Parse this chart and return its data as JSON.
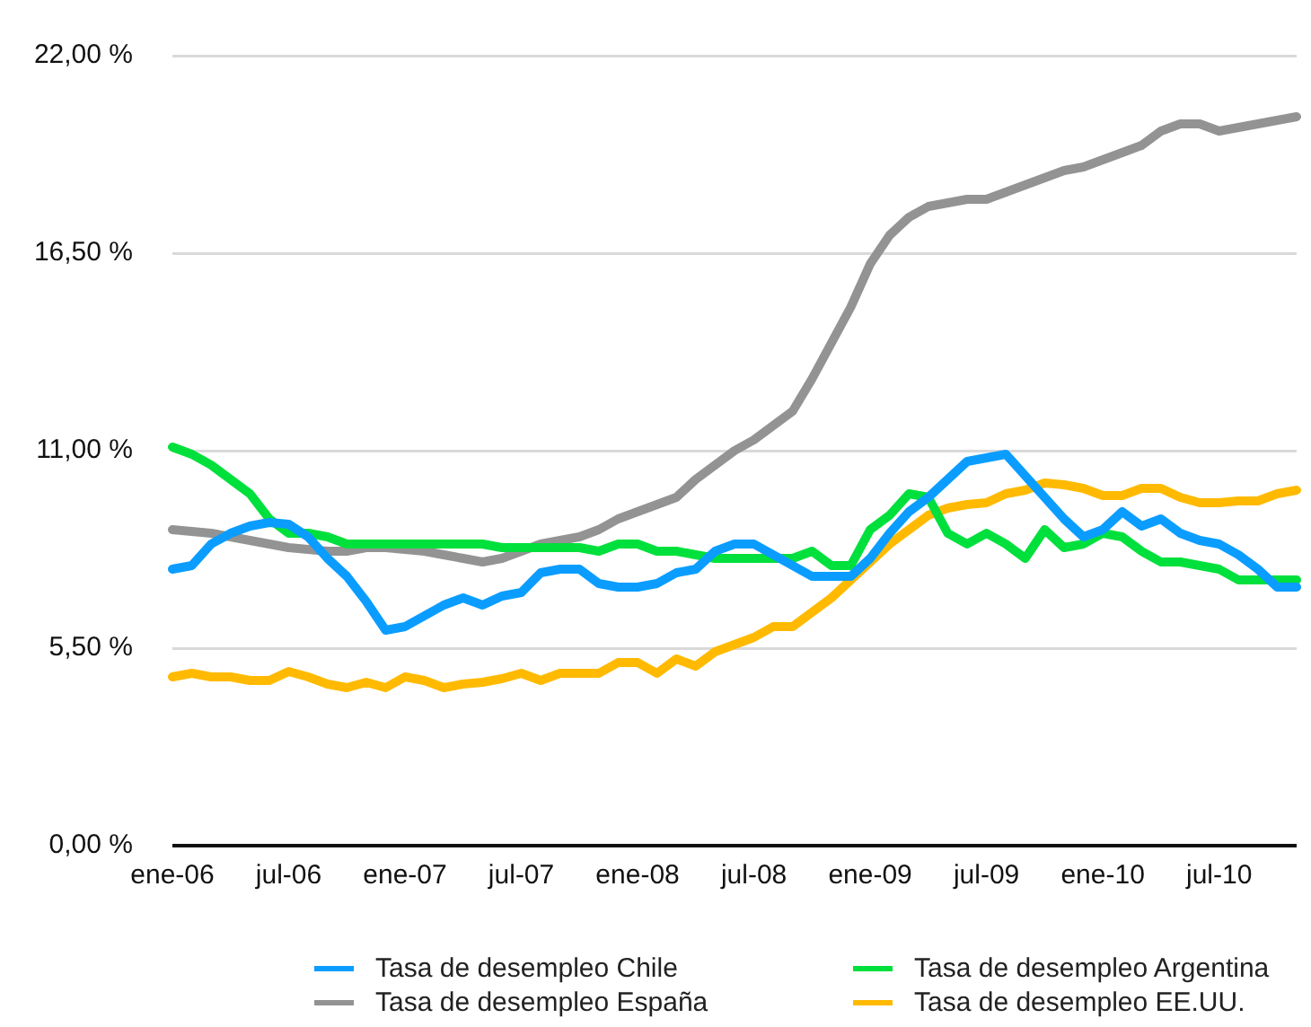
{
  "chart_data": {
    "type": "line",
    "categories": [
      "ene-06",
      null,
      null,
      null,
      null,
      null,
      "jul-06",
      null,
      null,
      null,
      null,
      null,
      "ene-07",
      null,
      null,
      null,
      null,
      null,
      "jul-07",
      null,
      null,
      null,
      null,
      null,
      "ene-08",
      null,
      null,
      null,
      null,
      null,
      "jul-08",
      null,
      null,
      null,
      null,
      null,
      "ene-09",
      null,
      null,
      null,
      null,
      null,
      "jul-09",
      null,
      null,
      null,
      null,
      null,
      "ene-10",
      null,
      null,
      null,
      null,
      null,
      "jul-10",
      null,
      null,
      null,
      null
    ],
    "series": [
      {
        "name": "Tasa de desempleo Chile",
        "color": "#0a9dff",
        "values": [
          7.7,
          7.8,
          8.4,
          8.7,
          8.9,
          9.0,
          8.95,
          8.6,
          8.0,
          7.5,
          6.8,
          6.0,
          6.1,
          6.4,
          6.7,
          6.9,
          6.7,
          6.95,
          7.05,
          7.6,
          7.7,
          7.7,
          7.3,
          7.2,
          7.2,
          7.3,
          7.6,
          7.7,
          8.2,
          8.4,
          8.4,
          8.1,
          7.8,
          7.5,
          7.5,
          7.5,
          8.0,
          8.7,
          9.3,
          9.7,
          10.2,
          10.7,
          10.8,
          10.9,
          10.3,
          9.7,
          9.1,
          8.6,
          8.8,
          9.3,
          8.9,
          9.1,
          8.7,
          8.5,
          8.4,
          8.1,
          7.7,
          7.2,
          7.2
        ]
      },
      {
        "name": "Tasa de desempleo Argentina",
        "color": "#00e03c",
        "values": [
          11.1,
          10.9,
          10.6,
          10.2,
          9.8,
          9.1,
          8.7,
          8.7,
          8.6,
          8.4,
          8.4,
          8.4,
          8.4,
          8.4,
          8.4,
          8.4,
          8.4,
          8.3,
          8.3,
          8.3,
          8.3,
          8.3,
          8.2,
          8.4,
          8.4,
          8.2,
          8.2,
          8.1,
          8.0,
          8.0,
          8.0,
          8.0,
          8.0,
          8.2,
          7.8,
          7.8,
          8.8,
          9.2,
          9.8,
          9.7,
          8.7,
          8.4,
          8.7,
          8.4,
          8.0,
          8.8,
          8.3,
          8.4,
          8.7,
          8.6,
          8.2,
          7.9,
          7.9,
          7.8,
          7.7,
          7.4,
          7.4,
          7.4,
          7.4
        ]
      },
      {
        "name": "Tasa de desempleo España",
        "color": "#939393",
        "values": [
          8.8,
          8.75,
          8.7,
          8.6,
          8.5,
          8.4,
          8.3,
          8.25,
          8.2,
          8.2,
          8.3,
          8.3,
          8.25,
          8.2,
          8.1,
          8.0,
          7.9,
          8.0,
          8.2,
          8.4,
          8.5,
          8.6,
          8.8,
          9.1,
          9.3,
          9.5,
          9.7,
          10.2,
          10.6,
          11.0,
          11.3,
          11.7,
          12.1,
          13.0,
          14.0,
          15.0,
          16.2,
          17.0,
          17.5,
          17.8,
          17.9,
          18.0,
          18.0,
          18.2,
          18.4,
          18.6,
          18.8,
          18.9,
          19.1,
          19.3,
          19.5,
          19.9,
          20.1,
          20.1,
          19.9,
          20.0,
          20.1,
          20.2,
          20.3
        ]
      },
      {
        "name": "Tasa de desempleo EE.UU.",
        "color": "#ffba00",
        "values": [
          4.7,
          4.8,
          4.7,
          4.7,
          4.6,
          4.6,
          4.85,
          4.7,
          4.5,
          4.4,
          4.55,
          4.4,
          4.7,
          4.6,
          4.4,
          4.5,
          4.55,
          4.65,
          4.8,
          4.6,
          4.8,
          4.8,
          4.8,
          5.1,
          5.1,
          4.8,
          5.2,
          5.0,
          5.4,
          5.6,
          5.8,
          6.1,
          6.1,
          6.5,
          6.9,
          7.4,
          7.9,
          8.4,
          8.8,
          9.2,
          9.4,
          9.5,
          9.55,
          9.8,
          9.9,
          10.1,
          10.05,
          9.95,
          9.75,
          9.75,
          9.95,
          9.95,
          9.7,
          9.55,
          9.55,
          9.6,
          9.6,
          9.8,
          9.9
        ]
      }
    ],
    "ylim": [
      0,
      22
    ],
    "yticks": [
      {
        "value": 0,
        "label": "0,00 %"
      },
      {
        "value": 5.5,
        "label": "5,50 %"
      },
      {
        "value": 11,
        "label": "11,00 %"
      },
      {
        "value": 16.5,
        "label": "16,50 %"
      },
      {
        "value": 22,
        "label": "22,00 %"
      }
    ],
    "grid": "y",
    "legend": "bottom",
    "marker": "none",
    "line_style": "solid"
  }
}
